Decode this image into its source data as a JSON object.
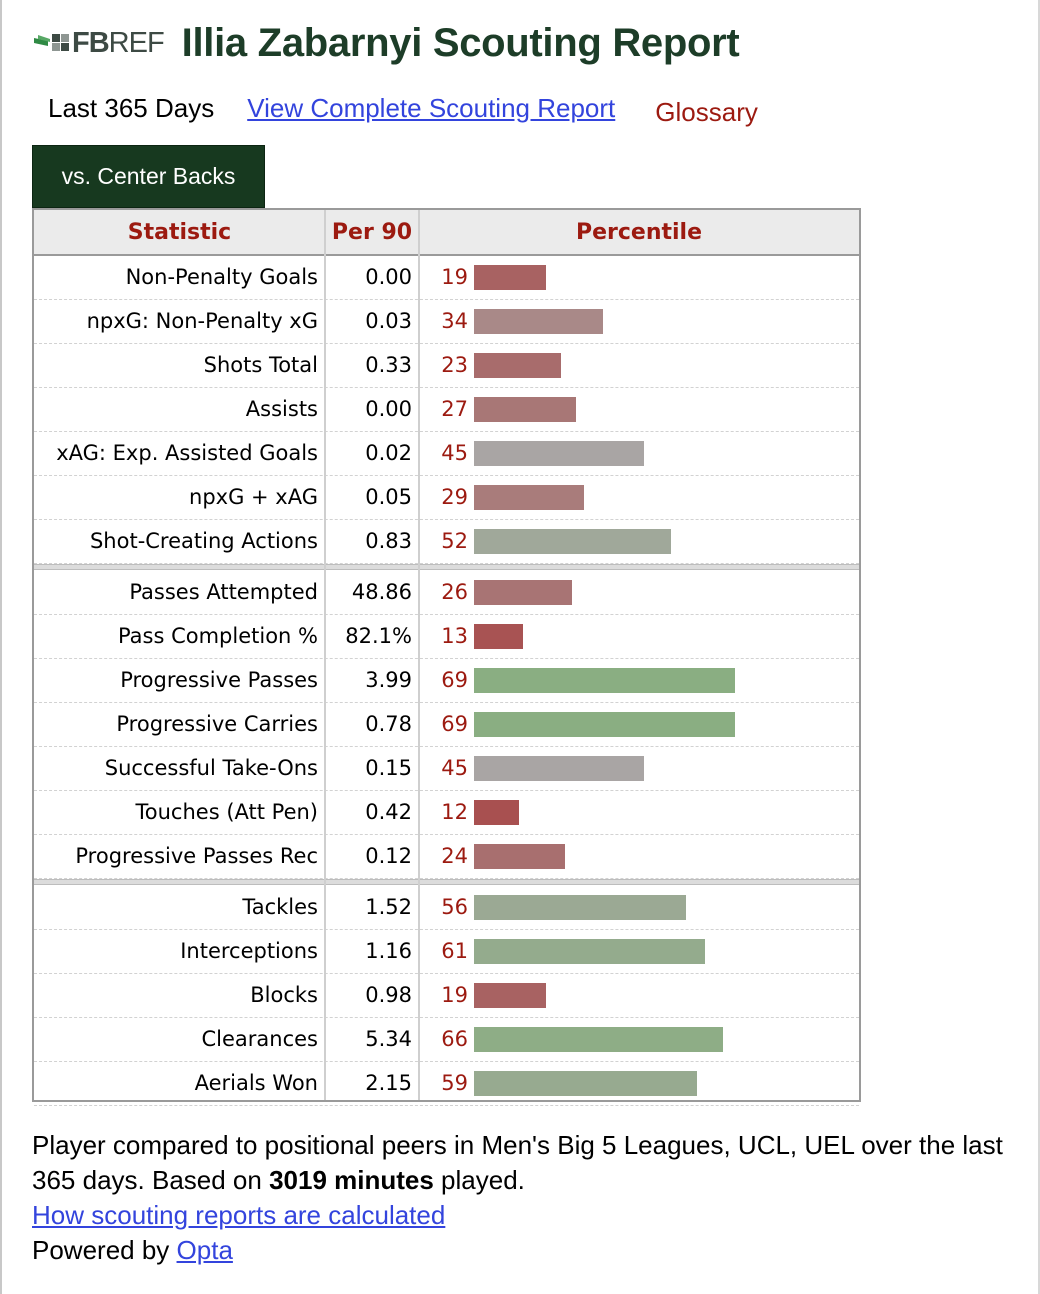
{
  "brand": {
    "logo_bold": "FB",
    "logo_light": "REF"
  },
  "title": "Illia Zabarnyi Scouting Report",
  "subnav": {
    "period": "Last 365 Days",
    "report_link": "View Complete Scouting Report",
    "glossary": "Glossary"
  },
  "tab": {
    "label": "vs. Center Backs"
  },
  "table": {
    "headers": {
      "statistic": "Statistic",
      "per90": "Per 90",
      "percentile": "Percentile"
    },
    "groups": [
      [
        {
          "stat": "Non-Penalty Goals",
          "per90": "0.00",
          "percentile": 19
        },
        {
          "stat": "npxG: Non-Penalty xG",
          "per90": "0.03",
          "percentile": 34
        },
        {
          "stat": "Shots Total",
          "per90": "0.33",
          "percentile": 23
        },
        {
          "stat": "Assists",
          "per90": "0.00",
          "percentile": 27
        },
        {
          "stat": "xAG: Exp. Assisted Goals",
          "per90": "0.02",
          "percentile": 45
        },
        {
          "stat": "npxG + xAG",
          "per90": "0.05",
          "percentile": 29
        },
        {
          "stat": "Shot-Creating Actions",
          "per90": "0.83",
          "percentile": 52
        }
      ],
      [
        {
          "stat": "Passes Attempted",
          "per90": "48.86",
          "percentile": 26
        },
        {
          "stat": "Pass Completion %",
          "per90": "82.1%",
          "percentile": 13
        },
        {
          "stat": "Progressive Passes",
          "per90": "3.99",
          "percentile": 69
        },
        {
          "stat": "Progressive Carries",
          "per90": "0.78",
          "percentile": 69
        },
        {
          "stat": "Successful Take-Ons",
          "per90": "0.15",
          "percentile": 45
        },
        {
          "stat": "Touches (Att Pen)",
          "per90": "0.42",
          "percentile": 12
        },
        {
          "stat": "Progressive Passes Rec",
          "per90": "0.12",
          "percentile": 24
        }
      ],
      [
        {
          "stat": "Tackles",
          "per90": "1.52",
          "percentile": 56
        },
        {
          "stat": "Interceptions",
          "per90": "1.16",
          "percentile": 61
        },
        {
          "stat": "Blocks",
          "per90": "0.98",
          "percentile": 19
        },
        {
          "stat": "Clearances",
          "per90": "5.34",
          "percentile": 66
        },
        {
          "stat": "Aerials Won",
          "per90": "2.15",
          "percentile": 59
        }
      ]
    ]
  },
  "footnote": {
    "text_1": "Player compared to positional peers in Men's Big 5 Leagues, UCL, UEL over the last 365 days. Based on ",
    "minutes": "3019 minutes",
    "text_2": " played.",
    "calc_link": "How scouting reports are calculated",
    "powered_prefix": "Powered by ",
    "powered_link": "Opta"
  },
  "colors": {
    "title": "#1d3d28",
    "tab_bg": "#17391f",
    "header_red": "#9c1a10",
    "link_blue": "#3344dd",
    "bar_low": "#a85050",
    "bar_mid": "#a9a5a4",
    "bar_high": "#8aae82"
  }
}
